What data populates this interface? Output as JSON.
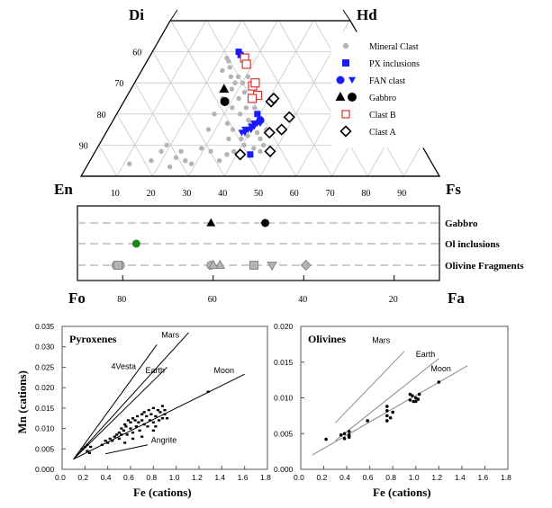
{
  "colors": {
    "grey": "#b4b4b4",
    "black": "#000000",
    "blue": "#1a1aff",
    "red": "#e03030",
    "green": "#1a8a1a",
    "grid": "#c8c8c8",
    "dash": "#9a9a9a"
  },
  "chart_data": [
    {
      "id": "ternary",
      "type": "scatter",
      "title": "",
      "corner_labels": {
        "top_left": "Di",
        "top_right": "Hd",
        "bottom_left": "En",
        "bottom_right": "Fs"
      },
      "bottom_ticks": [
        "10",
        "20",
        "30",
        "40",
        "50",
        "60",
        "70",
        "80",
        "90"
      ],
      "left_ticks": [
        "60",
        "70",
        "80",
        "90"
      ],
      "legend": [
        {
          "label": "Mineral Clast",
          "marker": "grey-dot"
        },
        {
          "label": "PX inclusions",
          "marker": "blue-square"
        },
        {
          "label": "FAN clast",
          "marker": "blue-circle-triangle"
        },
        {
          "label": "Gabbro",
          "marker": "black-triangle-circle"
        },
        {
          "label": "Clast B",
          "marker": "red-open-square"
        },
        {
          "label": "Clast A",
          "marker": "black-open-diamond"
        }
      ],
      "series": [
        {
          "name": "Mineral Clast",
          "points": [
            [
              20,
              92
            ],
            [
              21,
              90
            ],
            [
              25,
              94
            ],
            [
              26,
              92
            ],
            [
              32,
              91
            ],
            [
              35,
              92
            ],
            [
              30,
              96
            ],
            [
              38,
              95
            ],
            [
              40,
              93
            ],
            [
              42,
              92
            ],
            [
              44,
              88
            ],
            [
              45,
              90
            ],
            [
              47,
              93
            ],
            [
              48,
              91
            ],
            [
              46,
              87
            ],
            [
              50,
              88
            ],
            [
              52,
              85
            ],
            [
              41,
              85
            ],
            [
              39,
              83
            ],
            [
              43,
              80
            ],
            [
              40,
              78
            ],
            [
              42,
              75
            ],
            [
              44,
              73
            ],
            [
              43,
              70
            ],
            [
              45,
              68
            ],
            [
              39,
              72
            ],
            [
              38,
              68
            ],
            [
              37,
              65
            ],
            [
              36,
              63
            ],
            [
              35,
              62
            ],
            [
              34,
              66
            ],
            [
              47,
              83
            ],
            [
              49,
              86
            ],
            [
              36,
              75
            ],
            [
              34,
              80
            ],
            [
              33,
              85
            ],
            [
              40,
              88
            ],
            [
              44,
              94
            ],
            [
              50,
              92
            ],
            [
              28,
              95
            ],
            [
              48,
              78
            ],
            [
              45,
              78
            ],
            [
              46,
              82
            ],
            [
              51,
              90
            ],
            [
              53,
              91
            ],
            [
              40,
              70
            ],
            [
              41,
              68
            ],
            [
              12,
              96
            ],
            [
              18,
              95
            ],
            [
              24,
              97
            ]
          ]
        },
        {
          "name": "PX inclusions",
          "points": [
            [
              40,
              60
            ],
            [
              41,
              61
            ],
            [
              47,
              93
            ],
            [
              49,
              80
            ]
          ]
        },
        {
          "name": "FAN clast circle",
          "points": [
            [
              50,
              82
            ]
          ]
        },
        {
          "name": "FAN clast triangle",
          "points": [
            [
              44,
              86
            ],
            [
              45,
              85
            ],
            [
              46,
              85
            ],
            [
              47,
              84
            ],
            [
              48,
              84
            ],
            [
              49,
              83
            ],
            [
              50,
              83
            ],
            [
              45,
              86
            ],
            [
              47,
              85
            ],
            [
              48,
              83
            ]
          ]
        },
        {
          "name": "Gabbro triangle",
          "points": [
            [
              36,
              72
            ]
          ]
        },
        {
          "name": "Gabbro circle",
          "points": [
            [
              37,
              76
            ]
          ]
        },
        {
          "name": "Clast B",
          "points": [
            [
              43,
              62
            ],
            [
              44,
              64
            ],
            [
              47,
              71
            ],
            [
              48,
              70
            ],
            [
              49,
              74
            ],
            [
              47,
              75
            ]
          ]
        },
        {
          "name": "Clast A",
          "points": [
            [
              44,
              93
            ],
            [
              53,
              92
            ],
            [
              53,
              86
            ],
            [
              57,
              85
            ],
            [
              60,
              81
            ],
            [
              54,
              76
            ],
            [
              55,
              75
            ]
          ]
        }
      ]
    },
    {
      "id": "olivine",
      "type": "scatter",
      "title": "",
      "xlabel_left": "Fo",
      "xlabel_right": "Fa",
      "x_range": [
        90,
        10
      ],
      "ticks": [
        "80",
        "60",
        "40",
        "20"
      ],
      "tick_values": [
        80,
        60,
        40,
        20
      ],
      "rows": [
        {
          "label": "Gabbro",
          "points": [
            {
              "x": 60.5,
              "marker": "black-triangle"
            },
            {
              "x": 48.5,
              "marker": "black-circle"
            }
          ]
        },
        {
          "label": "Ol inclusions",
          "points": [
            {
              "x": 77,
              "marker": "green-circle"
            }
          ]
        },
        {
          "label": "Olivine Fragments",
          "points": [
            {
              "x": 81.5,
              "marker": "grey-circle"
            },
            {
              "x": 80.5,
              "marker": "grey-circle"
            },
            {
              "x": 81,
              "marker": "grey-square"
            },
            {
              "x": 60.5,
              "marker": "grey-circle"
            },
            {
              "x": 58.5,
              "marker": "grey-triangle"
            },
            {
              "x": 60,
              "marker": "grey-triangle"
            },
            {
              "x": 51,
              "marker": "grey-square"
            },
            {
              "x": 47,
              "marker": "grey-inv-triangle"
            },
            {
              "x": 39.5,
              "marker": "grey-diamond"
            }
          ]
        }
      ]
    },
    {
      "id": "pyroxenes",
      "type": "scatter",
      "title": "Pyroxenes",
      "xlabel": "Fe (cations)",
      "ylabel": "Mn (cations)",
      "xlim": [
        0,
        1.8
      ],
      "ylim": [
        0,
        0.035
      ],
      "xticks": [
        "0.0",
        "0.2",
        "0.4",
        "0.6",
        "0.8",
        "1.0",
        "1.2",
        "1.4",
        "1.6",
        "1.8"
      ],
      "yticks": [
        "0.000",
        "0.005",
        "0.010",
        "0.015",
        "0.020",
        "0.025",
        "0.030",
        "0.035"
      ],
      "reference_lines": [
        {
          "name": "4Vesta",
          "from": [
            0.1,
            0.0025
          ],
          "to": [
            0.83,
            0.0305
          ],
          "label_at": [
            0.43,
            0.0245
          ]
        },
        {
          "name": "Mars",
          "from": [
            0.1,
            0.0025
          ],
          "to": [
            1.11,
            0.0335
          ],
          "label_at": [
            0.87,
            0.0322
          ]
        },
        {
          "name": "Earth",
          "from": [
            0.1,
            0.0025
          ],
          "to": [
            0.92,
            0.025
          ],
          "label_at": [
            0.73,
            0.0235
          ]
        },
        {
          "name": "Moon",
          "from": [
            0.1,
            0.0025
          ],
          "to": [
            1.6,
            0.0233
          ],
          "label_at": [
            1.33,
            0.0235
          ]
        },
        {
          "name": "Angrite",
          "from": [
            0.38,
            0.0038
          ],
          "to": [
            0.75,
            0.006
          ],
          "label_at": [
            0.78,
            0.0065
          ]
        }
      ],
      "points": [
        [
          0.18,
          0.005
        ],
        [
          0.2,
          0.0055
        ],
        [
          0.22,
          0.006
        ],
        [
          0.22,
          0.0045
        ],
        [
          0.25,
          0.0055
        ],
        [
          0.24,
          0.004
        ],
        [
          0.35,
          0.006
        ],
        [
          0.38,
          0.007
        ],
        [
          0.4,
          0.0065
        ],
        [
          0.42,
          0.0075
        ],
        [
          0.44,
          0.007
        ],
        [
          0.46,
          0.008
        ],
        [
          0.48,
          0.0085
        ],
        [
          0.5,
          0.009
        ],
        [
          0.5,
          0.0075
        ],
        [
          0.52,
          0.01
        ],
        [
          0.52,
          0.0085
        ],
        [
          0.54,
          0.0095
        ],
        [
          0.55,
          0.011
        ],
        [
          0.56,
          0.0105
        ],
        [
          0.57,
          0.0085
        ],
        [
          0.58,
          0.012
        ],
        [
          0.6,
          0.0115
        ],
        [
          0.6,
          0.01
        ],
        [
          0.62,
          0.0125
        ],
        [
          0.62,
          0.009
        ],
        [
          0.64,
          0.012
        ],
        [
          0.65,
          0.0105
        ],
        [
          0.66,
          0.013
        ],
        [
          0.67,
          0.0115
        ],
        [
          0.68,
          0.0095
        ],
        [
          0.7,
          0.0135
        ],
        [
          0.7,
          0.012
        ],
        [
          0.72,
          0.011
        ],
        [
          0.72,
          0.014
        ],
        [
          0.74,
          0.013
        ],
        [
          0.75,
          0.0105
        ],
        [
          0.76,
          0.0145
        ],
        [
          0.77,
          0.012
        ],
        [
          0.78,
          0.0135
        ],
        [
          0.8,
          0.0115
        ],
        [
          0.8,
          0.015
        ],
        [
          0.82,
          0.013
        ],
        [
          0.82,
          0.0105
        ],
        [
          0.84,
          0.0145
        ],
        [
          0.85,
          0.012
        ],
        [
          0.86,
          0.014
        ],
        [
          0.88,
          0.0155
        ],
        [
          0.88,
          0.0125
        ],
        [
          0.9,
          0.0135
        ],
        [
          0.9,
          0.0145
        ],
        [
          0.92,
          0.0125
        ],
        [
          0.62,
          0.0075
        ],
        [
          0.7,
          0.008
        ],
        [
          0.55,
          0.0065
        ],
        [
          0.8,
          0.0095
        ],
        [
          1.28,
          0.019
        ]
      ]
    },
    {
      "id": "olivines",
      "type": "scatter",
      "title": "Olivines",
      "xlabel": "Fe (cations)",
      "ylabel": "",
      "xlim": [
        0,
        1.8
      ],
      "ylim": [
        0,
        0.02
      ],
      "xticks": [
        "0.0",
        "0.2",
        "0.4",
        "0.6",
        "0.8",
        "1.0",
        "1.2",
        "1.4",
        "1.6",
        "1.8"
      ],
      "yticks": [
        "0.000",
        "0.005",
        "0.010",
        "0.015",
        "0.020"
      ],
      "reference_lines": [
        {
          "name": "Mars",
          "from": [
            0.3,
            0.0065
          ],
          "to": [
            0.9,
            0.0165
          ],
          "label_at": [
            0.62,
            0.0177
          ]
        },
        {
          "name": "Earth",
          "from": [
            0.3,
            0.004
          ],
          "to": [
            1.2,
            0.0155
          ],
          "label_at": [
            1.0,
            0.0157
          ]
        },
        {
          "name": "Moon",
          "from": [
            0.1,
            0.002
          ],
          "to": [
            1.45,
            0.0145
          ],
          "label_at": [
            1.13,
            0.0137
          ]
        }
      ],
      "points": [
        [
          0.22,
          0.0042
        ],
        [
          0.35,
          0.0048
        ],
        [
          0.38,
          0.005
        ],
        [
          0.38,
          0.0043
        ],
        [
          0.42,
          0.0053
        ],
        [
          0.42,
          0.0048
        ],
        [
          0.42,
          0.0045
        ],
        [
          0.58,
          0.0068
        ],
        [
          0.75,
          0.0088
        ],
        [
          0.75,
          0.0082
        ],
        [
          0.75,
          0.0075
        ],
        [
          0.75,
          0.0068
        ],
        [
          0.78,
          0.0072
        ],
        [
          0.8,
          0.008
        ],
        [
          0.95,
          0.0105
        ],
        [
          0.95,
          0.0097
        ],
        [
          0.97,
          0.0103
        ],
        [
          0.98,
          0.0095
        ],
        [
          1.0,
          0.01
        ],
        [
          1.0,
          0.0095
        ],
        [
          1.02,
          0.0098
        ],
        [
          1.03,
          0.0105
        ],
        [
          1.2,
          0.0122
        ]
      ]
    }
  ]
}
